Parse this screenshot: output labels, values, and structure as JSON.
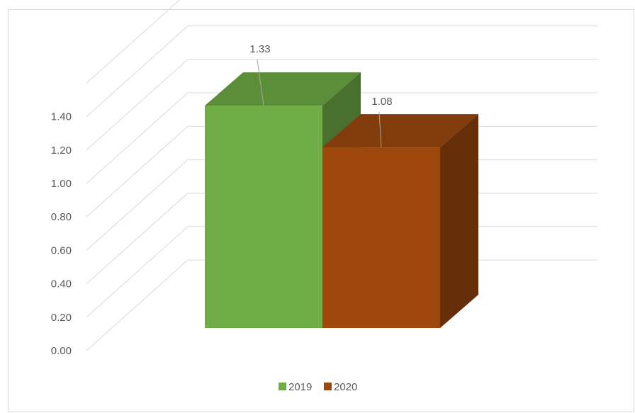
{
  "chart_data": {
    "type": "bar",
    "style": "3d-clustered-column",
    "categories": [
      ""
    ],
    "series": [
      {
        "name": "2019",
        "values": [
          1.33
        ],
        "color": "#70ad47",
        "data_label": "1.33"
      },
      {
        "name": "2020",
        "values": [
          1.08
        ],
        "color": "#9e480e",
        "data_label": "1.08"
      }
    ],
    "ylim": [
      0,
      1.4
    ],
    "y_ticks": [
      "0.00",
      "0.20",
      "0.40",
      "0.60",
      "0.80",
      "1.00",
      "1.20",
      "1.40"
    ],
    "grid": true,
    "legend_position": "bottom",
    "title": "",
    "xlabel": "",
    "ylabel": ""
  },
  "colors": {
    "gridline": "#d9d9d9",
    "text": "#595959",
    "frame": "#d9d9d9"
  }
}
